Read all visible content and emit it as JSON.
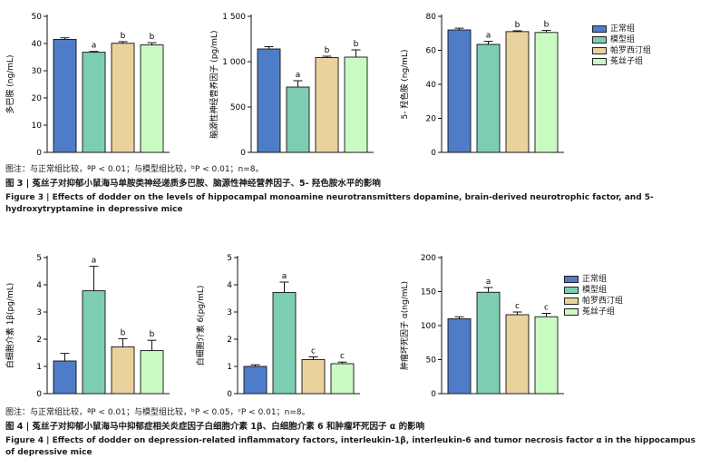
{
  "colors": {
    "normal": "#4f7cc9",
    "model": "#7dcdb2",
    "paroxetine": "#e9d29c",
    "dodder": "#c9fac2"
  },
  "legend": [
    "正常组",
    "模型组",
    "帕罗西汀组",
    "菟丝子组"
  ],
  "figure3": {
    "note": "图注：与正常组比较，ªP < 0.01；与模型组比较，ᵇP < 0.01；n=8。",
    "caption_cn": "图 3 | 菟丝子对抑郁小鼠海马单胺类神经递质多巴胺、脑源性神经营养因子、5- 羟色胺水平的影响",
    "caption_en": "Figure 3 | Effects of dodder on the levels of hippocampal monoamine neurotransmitters dopamine, brain-derived neurotrophic factor, and 5-hydroxytryptamine in depressive mice"
  },
  "figure4": {
    "note": "图注：与正常组比较，ªP < 0.01；与模型组比较，ᵇP < 0.05，ᶜP < 0.01；n=8。",
    "caption_cn": "图 4 | 菟丝子对抑郁小鼠海马中抑郁症相关炎症因子白细胞介素 1β、白细胞介素 6 和肿瘤坏死因子 α 的影响",
    "caption_en": "Figure 4 | Effects of dodder on depression-related inflammatory factors, interleukin-1β, interleukin-6 and tumor necrosis factor α in the hippocampus of depressive mice"
  },
  "chart_data": [
    {
      "type": "bar",
      "title": "",
      "ylabel": "多巴胺 (ng/mL)",
      "ylim": [
        0,
        50
      ],
      "ticks": [
        0,
        10,
        20,
        30,
        40,
        50
      ],
      "values": [
        41.5,
        36.8,
        40.1,
        39.5
      ],
      "errors": [
        0.6,
        0.3,
        0.6,
        0.8
      ],
      "labels": [
        "",
        "a",
        "b",
        "b"
      ]
    },
    {
      "type": "bar",
      "title": "",
      "ylabel": "脑源性神经营养因子 (pg/mL)",
      "ylim": [
        0,
        1500
      ],
      "ticks": [
        0,
        500,
        1000,
        1500
      ],
      "values": [
        1140,
        720,
        1045,
        1050
      ],
      "errors": [
        25,
        70,
        15,
        80
      ],
      "labels": [
        "",
        "a",
        "b",
        "b"
      ]
    },
    {
      "type": "bar",
      "title": "",
      "ylabel": "5- 羟色胺 (ng/mL)",
      "ylim": [
        0,
        80
      ],
      "ticks": [
        0,
        20,
        40,
        60,
        80
      ],
      "values": [
        72,
        63.5,
        71,
        70.5
      ],
      "errors": [
        1.0,
        1.8,
        0.5,
        1.2
      ],
      "labels": [
        "",
        "a",
        "b",
        "b"
      ]
    },
    {
      "type": "bar",
      "title": "",
      "ylabel": "白细胞介素 1β(pg/mL)",
      "ylim": [
        0,
        5
      ],
      "ticks": [
        0,
        1,
        2,
        3,
        4,
        5
      ],
      "values": [
        1.2,
        3.78,
        1.72,
        1.58
      ],
      "errors": [
        0.28,
        0.9,
        0.3,
        0.38
      ],
      "labels": [
        "",
        "a",
        "b",
        "b"
      ]
    },
    {
      "type": "bar",
      "title": "",
      "ylabel": "白细胞介素 6(pg/mL)",
      "ylim": [
        0,
        5
      ],
      "ticks": [
        0,
        1,
        2,
        3,
        4,
        5
      ],
      "values": [
        1.0,
        3.72,
        1.25,
        1.1
      ],
      "errors": [
        0.06,
        0.38,
        0.1,
        0.06
      ],
      "labels": [
        "",
        "a",
        "c",
        "c"
      ]
    },
    {
      "type": "bar",
      "title": "",
      "ylabel": "肿瘤坏死因子 α(ng/mL)",
      "ylim": [
        0,
        200
      ],
      "ticks": [
        0,
        50,
        100,
        150,
        200
      ],
      "values": [
        110,
        149,
        116,
        113
      ],
      "errors": [
        3,
        7,
        4,
        5
      ],
      "labels": [
        "",
        "a",
        "c",
        "c"
      ]
    }
  ]
}
